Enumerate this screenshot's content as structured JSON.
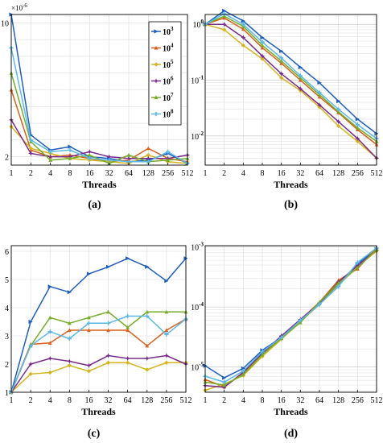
{
  "colors": [
    "#1f5fbf",
    "#d95f1a",
    "#d4b51b",
    "#7a2a8c",
    "#74ad2a",
    "#5ab9e6"
  ],
  "chart_data": [
    {
      "panel": "(a)",
      "type": "line",
      "scale": "linear",
      "xlabel": "Threads",
      "x": [
        "1",
        "2",
        "4",
        "8",
        "16",
        "32",
        "64",
        "128",
        "256",
        "512"
      ],
      "y_tick_labels": [
        "2",
        "10"
      ],
      "y_multiplier": {
        "base": "×10",
        "exp": "-6"
      },
      "ylim": [
        1.5,
        10.5
      ],
      "series": [
        {
          "name_base": "10",
          "name_exp": "3",
          "values": [
            10.5,
            3.3,
            2.4,
            2.6,
            2.0,
            1.9,
            1.7,
            1.8,
            2.2,
            1.6
          ]
        },
        {
          "name_base": "10",
          "name_exp": "4",
          "values": [
            6.0,
            2.4,
            2.0,
            2.1,
            1.9,
            1.7,
            1.8,
            2.5,
            1.9,
            1.7
          ]
        },
        {
          "name_base": "10",
          "name_exp": "5",
          "values": [
            3.8,
            2.5,
            2.2,
            1.9,
            1.8,
            1.7,
            1.6,
            2.1,
            1.7,
            1.6
          ]
        },
        {
          "name_base": "10",
          "name_exp": "6",
          "values": [
            4.2,
            2.2,
            2.0,
            2.0,
            2.3,
            2.0,
            1.9,
            1.9,
            1.9,
            2.1
          ]
        },
        {
          "name_base": "10",
          "name_exp": "7",
          "values": [
            7.0,
            2.9,
            1.8,
            1.9,
            2.1,
            1.6,
            2.1,
            1.7,
            1.8,
            1.9
          ]
        },
        {
          "name_base": "10",
          "name_exp": "8",
          "values": [
            8.5,
            3.0,
            2.3,
            2.4,
            1.9,
            1.8,
            1.7,
            1.7,
            2.3,
            1.6
          ]
        }
      ]
    },
    {
      "panel": "(b)",
      "type": "line",
      "scale": "log",
      "xlabel": "Threads",
      "x": [
        "1",
        "2",
        "4",
        "8",
        "16",
        "32",
        "64",
        "128",
        "256",
        "512"
      ],
      "y_tick_labels": [
        {
          "base": "10",
          "exp": "0"
        },
        {
          "base": "10",
          "exp": "-1"
        },
        {
          "base": "10",
          "exp": "-2"
        }
      ],
      "ylim": [
        0.003,
        1.5
      ],
      "series": [
        {
          "values": [
            1.0,
            1.75,
            1.15,
            0.58,
            0.33,
            0.17,
            0.09,
            0.042,
            0.02,
            0.011
          ]
        },
        {
          "values": [
            1.0,
            1.3,
            0.82,
            0.38,
            0.2,
            0.1,
            0.05,
            0.026,
            0.013,
            0.007
          ]
        },
        {
          "values": [
            1.0,
            0.8,
            0.42,
            0.24,
            0.11,
            0.065,
            0.033,
            0.015,
            0.008,
            0.004
          ]
        },
        {
          "values": [
            1.0,
            1.0,
            0.58,
            0.27,
            0.13,
            0.07,
            0.036,
            0.018,
            0.009,
            0.004
          ]
        },
        {
          "values": [
            1.0,
            1.4,
            0.92,
            0.42,
            0.22,
            0.11,
            0.055,
            0.027,
            0.014,
            0.008
          ]
        },
        {
          "values": [
            1.0,
            1.55,
            1.0,
            0.48,
            0.25,
            0.12,
            0.06,
            0.03,
            0.016,
            0.009
          ]
        }
      ]
    },
    {
      "panel": "(c)",
      "type": "line",
      "scale": "linear",
      "xlabel": "Threads",
      "x": [
        "1",
        "2",
        "4",
        "8",
        "16",
        "32",
        "64",
        "128",
        "256",
        "512"
      ],
      "y_tick_labels": [
        "1",
        "2",
        "3",
        "4",
        "5",
        "6"
      ],
      "ylim": [
        1,
        6.2
      ],
      "series": [
        {
          "values": [
            1.0,
            3.5,
            4.75,
            4.55,
            5.2,
            5.45,
            5.75,
            5.45,
            4.95,
            5.75
          ]
        },
        {
          "values": [
            1.0,
            2.7,
            2.75,
            3.2,
            3.2,
            3.2,
            3.2,
            2.65,
            3.2,
            3.6
          ]
        },
        {
          "values": [
            1.0,
            1.65,
            1.7,
            1.95,
            1.75,
            2.05,
            2.05,
            1.8,
            2.05,
            2.05
          ]
        },
        {
          "values": [
            1.0,
            2.0,
            2.2,
            2.1,
            1.95,
            2.3,
            2.2,
            2.2,
            2.3,
            2.0
          ]
        },
        {
          "values": [
            1.0,
            2.65,
            3.65,
            3.45,
            3.65,
            3.85,
            3.3,
            3.85,
            3.85,
            3.85
          ]
        },
        {
          "values": [
            1.0,
            2.65,
            3.15,
            2.9,
            3.45,
            3.45,
            3.7,
            3.7,
            3.05,
            3.6
          ]
        }
      ]
    },
    {
      "panel": "(d)",
      "type": "line",
      "scale": "log",
      "xlabel": "Threads",
      "x": [
        "1",
        "2",
        "4",
        "8",
        "16",
        "32",
        "64",
        "128",
        "256",
        "512"
      ],
      "y_tick_labels": [
        {
          "base": "10",
          "exp": "-3"
        },
        {
          "base": "10",
          "exp": "-4"
        },
        {
          "base": "10",
          "exp": "-5"
        }
      ],
      "ylim": [
        3.8e-06,
        0.00105
      ],
      "series": [
        {
          "values": [
            1.05e-05,
            6.6e-06,
            9.5e-06,
            1.9e-05,
            3.1e-05,
            5.8e-05,
            0.00011,
            0.00024,
            0.00052,
            0.00093
          ]
        },
        {
          "values": [
            6.2e-06,
            4.7e-06,
            7.8e-06,
            1.6e-05,
            3.2e-05,
            6.1e-05,
            0.00012,
            0.00028,
            0.00043,
            0.00098
          ]
        },
        {
          "values": [
            4.1e-06,
            5.2e-06,
            7.2e-06,
            1.5e-05,
            2.9e-05,
            5.7e-05,
            0.00011,
            0.00023,
            0.00047,
            0.00085
          ]
        },
        {
          "values": [
            4.9e-06,
            4.6e-06,
            8.2e-06,
            1.7e-05,
            3.3e-05,
            6.2e-05,
            0.000115,
            0.00026,
            0.00049,
            0.00088
          ]
        },
        {
          "values": [
            5.6e-06,
            5e-06,
            7.5e-06,
            1.6e-05,
            3e-05,
            5.5e-05,
            0.00012,
            0.00025,
            0.00045,
            0.0009
          ]
        },
        {
          "values": [
            7e-06,
            5.6e-06,
            8.6e-06,
            1.8e-05,
            3.1e-05,
            6e-05,
            0.00011,
            0.00022,
            0.00055,
            0.00096
          ]
        }
      ]
    }
  ]
}
